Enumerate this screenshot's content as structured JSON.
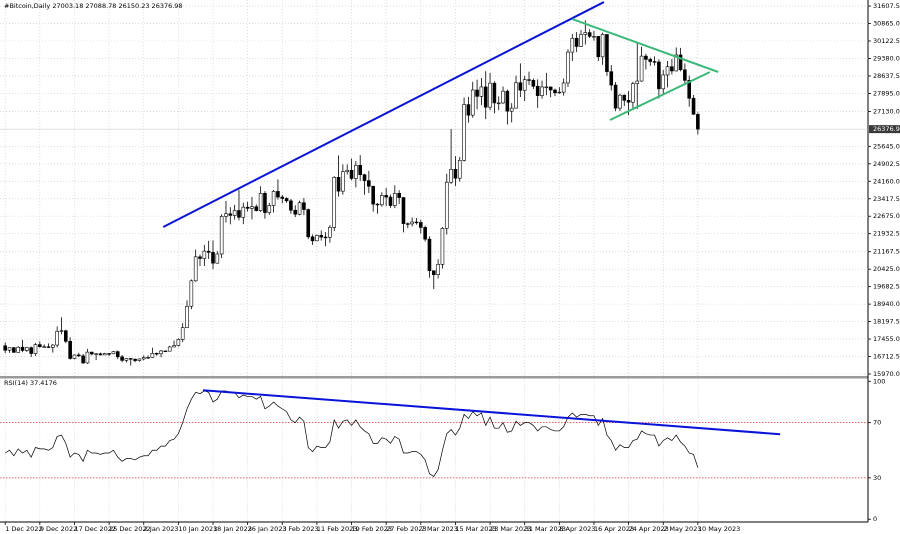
{
  "chart_data": {
    "type": "candlestick",
    "title": "#Bitcoin,Daily 27003.18 27088.78 26150.23 26376.98",
    "categories": [
      "1 Dec 2022",
      null,
      null,
      null,
      null,
      null,
      null,
      null,
      "9 Dec 2022",
      null,
      null,
      null,
      null,
      null,
      null,
      null,
      "17 Dec 2022",
      null,
      null,
      null,
      null,
      null,
      null,
      null,
      "25 Dec 2022",
      null,
      null,
      null,
      null,
      null,
      null,
      null,
      "2 Jan 2023",
      null,
      null,
      null,
      null,
      null,
      null,
      null,
      "10 Jan 2023",
      null,
      null,
      null,
      null,
      null,
      null,
      null,
      "18 Jan 2023",
      null,
      null,
      null,
      null,
      null,
      null,
      null,
      "26 Jan 2023",
      null,
      null,
      null,
      null,
      null,
      null,
      null,
      "3 Feb 2023",
      null,
      null,
      null,
      null,
      null,
      null,
      null,
      "11 Feb 2023",
      null,
      null,
      null,
      null,
      null,
      null,
      null,
      "19 Feb 2023",
      null,
      null,
      null,
      null,
      null,
      null,
      null,
      "27 Feb 2023",
      null,
      null,
      null,
      null,
      null,
      null,
      null,
      "7 Mar 2023",
      null,
      null,
      null,
      null,
      null,
      null,
      null,
      "15 Mar 2023",
      null,
      null,
      null,
      null,
      null,
      null,
      null,
      "23 Mar 2023",
      null,
      null,
      null,
      null,
      null,
      null,
      null,
      "31 Mar 2023",
      null,
      null,
      null,
      null,
      null,
      null,
      null,
      "8 Apr 2023",
      null,
      null,
      null,
      null,
      null,
      null,
      null,
      "16 Apr 2023",
      null,
      null,
      null,
      null,
      null,
      null,
      null,
      "24 Apr 2023",
      null,
      null,
      null,
      null,
      null,
      null,
      null,
      "2 May 2023",
      null,
      null,
      null,
      null,
      null,
      null,
      null,
      "10 May 2023"
    ],
    "ohlc": [
      [
        17170,
        17310,
        16860,
        16980
      ],
      [
        16980,
        17100,
        16870,
        17090
      ],
      [
        17090,
        17120,
        16870,
        16890
      ],
      [
        16890,
        17150,
        16880,
        17110
      ],
      [
        17110,
        17420,
        16900,
        16970
      ],
      [
        16970,
        17110,
        16910,
        17090
      ],
      [
        17090,
        17140,
        16690,
        16840
      ],
      [
        16840,
        17290,
        16740,
        17220
      ],
      [
        17220,
        17360,
        17090,
        17130
      ],
      [
        17130,
        17230,
        17090,
        17130
      ],
      [
        17130,
        17270,
        17070,
        17100
      ],
      [
        17100,
        17240,
        16880,
        17200
      ],
      [
        17200,
        17990,
        17100,
        17780
      ],
      [
        17780,
        18380,
        17660,
        17810
      ],
      [
        17810,
        17850,
        17280,
        17360
      ],
      [
        17360,
        17530,
        16580,
        16630
      ],
      [
        16630,
        16800,
        16590,
        16780
      ],
      [
        16780,
        16870,
        16700,
        16740
      ],
      [
        16740,
        16820,
        16400,
        16440
      ],
      [
        16440,
        17040,
        16400,
        16900
      ],
      [
        16900,
        16920,
        16760,
        16820
      ],
      [
        16820,
        16860,
        16560,
        16830
      ],
      [
        16830,
        16880,
        16760,
        16780
      ],
      [
        16780,
        16870,
        16780,
        16840
      ],
      [
        16840,
        16860,
        16730,
        16830
      ],
      [
        16830,
        16940,
        16810,
        16920
      ],
      [
        16920,
        16970,
        16600,
        16700
      ],
      [
        16700,
        16780,
        16480,
        16550
      ],
      [
        16550,
        16650,
        16460,
        16630
      ],
      [
        16630,
        16640,
        16330,
        16600
      ],
      [
        16600,
        16630,
        16470,
        16540
      ],
      [
        16540,
        16630,
        16490,
        16610
      ],
      [
        16610,
        16760,
        16550,
        16670
      ],
      [
        16670,
        16760,
        16610,
        16680
      ],
      [
        16680,
        17090,
        16660,
        16850
      ],
      [
        16850,
        16880,
        16750,
        16830
      ],
      [
        16830,
        16990,
        16680,
        16950
      ],
      [
        16950,
        16970,
        16910,
        16940
      ],
      [
        16940,
        17170,
        16930,
        17120
      ],
      [
        17120,
        17390,
        17110,
        17180
      ],
      [
        17180,
        17490,
        17140,
        17440
      ],
      [
        17440,
        18130,
        17320,
        17940
      ],
      [
        17940,
        19100,
        17920,
        18850
      ],
      [
        18850,
        19990,
        18720,
        19930
      ],
      [
        19930,
        21260,
        19890,
        20950
      ],
      [
        20950,
        21050,
        20560,
        20880
      ],
      [
        20880,
        21460,
        20560,
        21190
      ],
      [
        21190,
        21630,
        20860,
        21140
      ],
      [
        21140,
        21650,
        20420,
        20680
      ],
      [
        20680,
        21190,
        20660,
        21070
      ],
      [
        21070,
        22760,
        20900,
        22670
      ],
      [
        22670,
        23330,
        22410,
        22780
      ],
      [
        22780,
        23060,
        22330,
        22710
      ],
      [
        22710,
        23160,
        22530,
        22920
      ],
      [
        22920,
        23800,
        22500,
        22630
      ],
      [
        22630,
        23250,
        22340,
        23060
      ],
      [
        23060,
        23290,
        22870,
        23010
      ],
      [
        23010,
        23500,
        22540,
        23080
      ],
      [
        23080,
        23180,
        22880,
        22910
      ],
      [
        22910,
        23950,
        22850,
        23650
      ],
      [
        23650,
        23740,
        22570,
        22830
      ],
      [
        22830,
        23240,
        22730,
        23130
      ],
      [
        23130,
        23790,
        22830,
        23730
      ],
      [
        23730,
        24240,
        23380,
        23490
      ],
      [
        23490,
        23580,
        23230,
        23430
      ],
      [
        23430,
        23480,
        23250,
        23330
      ],
      [
        23330,
        23410,
        22780,
        22930
      ],
      [
        22930,
        23140,
        22640,
        22760
      ],
      [
        22760,
        23340,
        22720,
        23250
      ],
      [
        23250,
        23450,
        22720,
        22960
      ],
      [
        22960,
        23000,
        21700,
        21800
      ],
      [
        21800,
        21900,
        21460,
        21630
      ],
      [
        21630,
        21900,
        21610,
        21860
      ],
      [
        21860,
        22070,
        21640,
        21790
      ],
      [
        21790,
        22000,
        21400,
        21780
      ],
      [
        21780,
        22300,
        21550,
        22200
      ],
      [
        22200,
        24380,
        22050,
        24330
      ],
      [
        24330,
        25260,
        23510,
        23740
      ],
      [
        23740,
        24880,
        23590,
        24570
      ],
      [
        24570,
        24880,
        24450,
        24630
      ],
      [
        24630,
        25130,
        24210,
        24280
      ],
      [
        24280,
        25020,
        23900,
        24840
      ],
      [
        24840,
        25270,
        24180,
        24440
      ],
      [
        24440,
        24480,
        23590,
        24190
      ],
      [
        24190,
        24600,
        23660,
        23950
      ],
      [
        23950,
        23970,
        22870,
        23190
      ],
      [
        23190,
        23230,
        22780,
        23160
      ],
      [
        23160,
        23690,
        23080,
        23560
      ],
      [
        23560,
        23880,
        23110,
        23490
      ],
      [
        23490,
        23600,
        23030,
        23130
      ],
      [
        23130,
        23990,
        23020,
        23650
      ],
      [
        23650,
        23780,
        23200,
        23470
      ],
      [
        23470,
        23480,
        21990,
        22360
      ],
      [
        22360,
        22410,
        22170,
        22350
      ],
      [
        22350,
        22620,
        22240,
        22430
      ],
      [
        22430,
        22600,
        22320,
        22410
      ],
      [
        22410,
        22530,
        21940,
        22200
      ],
      [
        22200,
        22270,
        21600,
        21700
      ],
      [
        21700,
        21820,
        20060,
        20360
      ],
      [
        20360,
        20370,
        19580,
        20190
      ],
      [
        20190,
        20850,
        20030,
        20630
      ],
      [
        20630,
        22220,
        20450,
        22160
      ],
      [
        22160,
        24480,
        21900,
        24120
      ],
      [
        24120,
        26380,
        24050,
        24670
      ],
      [
        24670,
        25230,
        23960,
        24290
      ],
      [
        24290,
        25200,
        24140,
        25050
      ],
      [
        25050,
        27720,
        25000,
        27420
      ],
      [
        27420,
        27750,
        26650,
        26970
      ],
      [
        26970,
        28390,
        26860,
        28040
      ],
      [
        28040,
        28480,
        27220,
        27770
      ],
      [
        27770,
        28550,
        27390,
        28170
      ],
      [
        28170,
        28840,
        26800,
        27310
      ],
      [
        27310,
        28760,
        27180,
        28330
      ],
      [
        28330,
        28410,
        27050,
        27490
      ],
      [
        27490,
        27770,
        27190,
        27490
      ],
      [
        27490,
        28190,
        27450,
        27990
      ],
      [
        27990,
        28060,
        26570,
        27140
      ],
      [
        27140,
        27480,
        26660,
        27270
      ],
      [
        27270,
        28650,
        27250,
        28350
      ],
      [
        28350,
        29170,
        27740,
        28030
      ],
      [
        28030,
        28640,
        27570,
        28480
      ],
      [
        28480,
        28820,
        28250,
        28450
      ],
      [
        28450,
        28530,
        28080,
        28200
      ],
      [
        28200,
        28490,
        27280,
        27800
      ],
      [
        27800,
        28440,
        27670,
        28170
      ],
      [
        28170,
        28770,
        27820,
        28170
      ],
      [
        28170,
        28190,
        27730,
        28040
      ],
      [
        28040,
        28100,
        27780,
        27920
      ],
      [
        27920,
        28160,
        27880,
        27950
      ],
      [
        27950,
        28530,
        27800,
        28340
      ],
      [
        28340,
        29770,
        28170,
        29650
      ],
      [
        29650,
        30420,
        29270,
        30240
      ],
      [
        30240,
        30500,
        29650,
        29890
      ],
      [
        29890,
        30590,
        29870,
        30400
      ],
      [
        30400,
        31000,
        29970,
        30480
      ],
      [
        30480,
        30620,
        30250,
        30320
      ],
      [
        30320,
        30550,
        30140,
        30320
      ],
      [
        30320,
        30330,
        29270,
        29450
      ],
      [
        29450,
        30480,
        29110,
        30400
      ],
      [
        30400,
        30410,
        28640,
        28820
      ],
      [
        28820,
        29100,
        28020,
        28250
      ],
      [
        28250,
        28380,
        27140,
        27270
      ],
      [
        27270,
        27880,
        27150,
        27820
      ],
      [
        27820,
        27850,
        27360,
        27600
      ],
      [
        27600,
        28000,
        26970,
        27520
      ],
      [
        27520,
        28390,
        27200,
        28310
      ],
      [
        28310,
        30020,
        27230,
        28420
      ],
      [
        28420,
        29880,
        28390,
        29480
      ],
      [
        29480,
        29580,
        28910,
        29340
      ],
      [
        29340,
        29420,
        29070,
        29250
      ],
      [
        29250,
        29470,
        29080,
        29230
      ],
      [
        29230,
        29340,
        27680,
        28090
      ],
      [
        28090,
        28890,
        27890,
        28680
      ],
      [
        28680,
        29270,
        28150,
        29030
      ],
      [
        29030,
        29360,
        28700,
        28850
      ],
      [
        28850,
        29850,
        28830,
        29530
      ],
      [
        29530,
        29830,
        28830,
        28900
      ],
      [
        28900,
        29170,
        28330,
        28450
      ],
      [
        28450,
        28650,
        27330,
        27690
      ],
      [
        27690,
        27830,
        26980,
        27010
      ],
      [
        27003.18,
        27088.78,
        26150.23,
        26376.98
      ]
    ],
    "xlim": [
      -1.2,
      199.3
    ],
    "ylim": [
      15885,
      31865
    ],
    "yticks": [
      {
        "value": 31607.5,
        "label": "31607.50"
      },
      {
        "value": 30865,
        "label": "30865.00"
      },
      {
        "value": 30122.5,
        "label": "30122.50"
      },
      {
        "value": 29380,
        "label": "29380.00"
      },
      {
        "value": 28637.5,
        "label": "28637.50"
      },
      {
        "value": 27895,
        "label": "27895.00"
      },
      {
        "value": 27130,
        "label": "27130.00"
      },
      {
        "value": 25645,
        "label": "25645.00"
      },
      {
        "value": 24902.5,
        "label": "24902.50"
      },
      {
        "value": 24160,
        "label": "24160.00"
      },
      {
        "value": 23417.5,
        "label": "23417.50"
      },
      {
        "value": 22675,
        "label": "22675.00"
      },
      {
        "value": 21932.5,
        "label": "21932.50"
      },
      {
        "value": 21167.5,
        "label": "21167.50"
      },
      {
        "value": 20425,
        "label": "20425.00"
      },
      {
        "value": 19682.5,
        "label": "19682.50"
      },
      {
        "value": 18940,
        "label": "18940.00"
      },
      {
        "value": 18197.5,
        "label": "18197.50"
      },
      {
        "value": 17455,
        "label": "17455.00"
      },
      {
        "value": 16712.5,
        "label": "16712.50"
      },
      {
        "value": 15970,
        "label": "15970.00"
      }
    ],
    "grid": true,
    "colors": {
      "bull": "#ffffff",
      "bear": "#000000",
      "outline": "#000000",
      "grid": "#c8c8c8",
      "price_box": "#3a3a3a"
    },
    "trendlines": [
      {
        "color": "#0a14d8",
        "x": [
          36.5,
          138.3
        ],
        "y": [
          22218,
          31777
        ]
      },
      {
        "color": "#3cb878",
        "x": [
          131,
          164.7
        ],
        "y": [
          31057,
          28805
        ]
      },
      {
        "color": "#3cb878",
        "x": [
          139.7,
          162.8
        ],
        "y": [
          26765,
          28805
        ]
      }
    ],
    "indicator": {
      "type": "line",
      "title": "RSI(14) 37.4176",
      "color": "#000000",
      "values": [
        48,
        50,
        46,
        51,
        48,
        50,
        45,
        52,
        51,
        51,
        50,
        52,
        60,
        61,
        55,
        45,
        48,
        47,
        42,
        50,
        48,
        48,
        47,
        48,
        48,
        50,
        45,
        42,
        44,
        44,
        43,
        45,
        46,
        46,
        50,
        50,
        53,
        53,
        57,
        58,
        62,
        70,
        80,
        87,
        92,
        91,
        93,
        92,
        85,
        87,
        93,
        93,
        92,
        92,
        88,
        90,
        89,
        89,
        87,
        89,
        80,
        82,
        85,
        82,
        80,
        78,
        72,
        70,
        74,
        71,
        52,
        49,
        53,
        52,
        52,
        56,
        72,
        66,
        71,
        72,
        68,
        72,
        67,
        64,
        62,
        55,
        55,
        59,
        58,
        55,
        60,
        58,
        48,
        48,
        49,
        49,
        47,
        43,
        33,
        31,
        36,
        50,
        62,
        65,
        61,
        66,
        76,
        73,
        78,
        75,
        77,
        68,
        74,
        66,
        66,
        70,
        63,
        64,
        71,
        68,
        70,
        70,
        68,
        64,
        67,
        67,
        65,
        64,
        64,
        67,
        74,
        77,
        74,
        76,
        76,
        75,
        75,
        68,
        73,
        61,
        57,
        50,
        54,
        52,
        52,
        57,
        58,
        64,
        62,
        61,
        61,
        53,
        57,
        59,
        57,
        61,
        56,
        53,
        48,
        47,
        37.4176
      ],
      "ylim": [
        -2,
        102
      ],
      "yticks": [
        100,
        70,
        30,
        0
      ],
      "levels": [
        70,
        30
      ],
      "level_color": "#e03030",
      "trendlines": [
        {
          "color": "#0a14d8",
          "x": [
            45.7,
            179
          ],
          "y": [
            93.5,
            61.6
          ]
        }
      ]
    }
  }
}
